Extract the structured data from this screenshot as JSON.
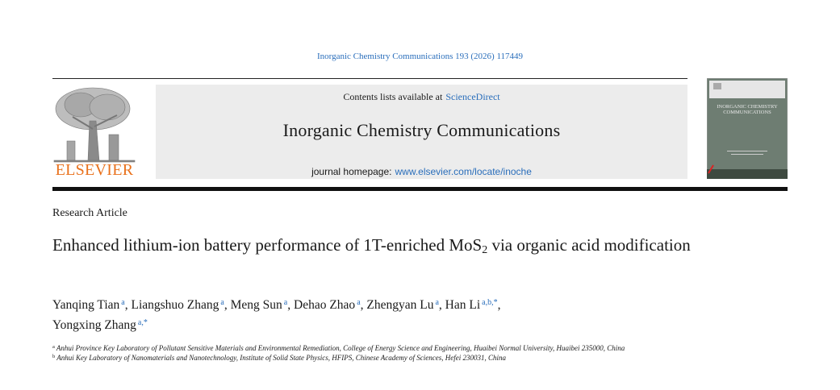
{
  "header": {
    "citation": "Inorganic Chemistry Communications 193 (2026) 117449",
    "contents_prefix": "Contents lists available at",
    "contents_link": "ScienceDirect",
    "journal": "Inorganic Chemistry Communications",
    "homepage_prefix": "journal homepage:",
    "homepage_url": "www.elsevier.com/locate/inoche",
    "publisher": "ELSEVIER",
    "cover_title": "INORGANIC CHEMISTRY COMMUNICATIONS"
  },
  "article_type": "Research Article",
  "title": {
    "before": "Enhanced lithium-ion battery performance of 1T-enriched MoS",
    "subscript": "2",
    "after": " via organic acid modification"
  },
  "author_separator": ",",
  "authors": [
    {
      "name": "Yanqing Tian",
      "sup": "a"
    },
    {
      "name": "Liangshuo Zhang",
      "sup": "a"
    },
    {
      "name": "Meng Sun",
      "sup": "a"
    },
    {
      "name": "Dehao Zhao",
      "sup": "a"
    },
    {
      "name": "Zhengyan Lu",
      "sup": "a"
    },
    {
      "name": "Han Li",
      "sup": "a,b,*"
    },
    {
      "name": "Yongxing Zhang",
      "sup": "a,*"
    }
  ],
  "affiliations": [
    {
      "label": "a",
      "text": "Anhui Province Key Laboratory of Pollutant Sensitive Materials and Environmental Remediation, College of Energy Science and Engineering, Huaibei Normal University, Huaibei 235000, China"
    },
    {
      "label": "b",
      "text": "Anhui Key Laboratory of Nanomaterials and Nanotechnology, Institute of Solid State Physics, HFIPS, Chinese Academy of Sciences, Hefei 230031, China"
    }
  ]
}
